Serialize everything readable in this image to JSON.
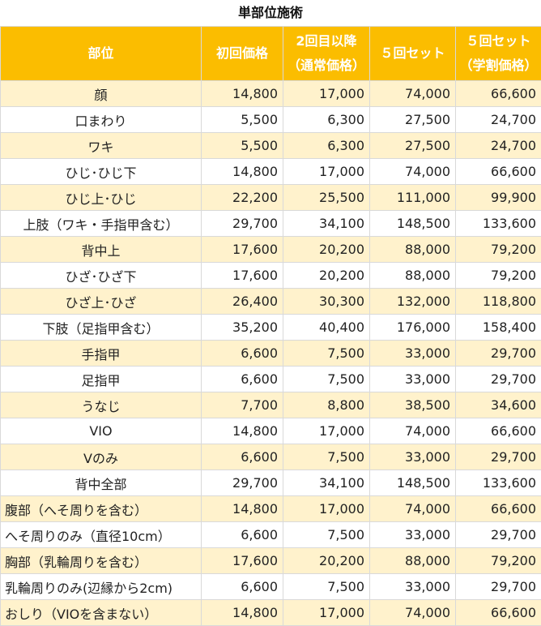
{
  "title": "単部位施術",
  "headers": {
    "part": "部位",
    "first": "初回価格",
    "second_line1": "2回目以降",
    "second_line2": "（通常価格）",
    "set5": "５回セット",
    "set5_student_line1": "５回セット",
    "set5_student_line2": "（学割価格）"
  },
  "colors": {
    "header_bg": "#fbbd00",
    "header_text": "#ffffff",
    "stripe_bg": "#fff2cc",
    "plain_bg": "#ffffff"
  },
  "rows": [
    {
      "part": "顔",
      "first": "14,800",
      "second": "17,000",
      "set5": "74,000",
      "student": "66,600",
      "align": "center"
    },
    {
      "part": "口まわり",
      "first": "5,500",
      "second": "6,300",
      "set5": "27,500",
      "student": "24,700",
      "align": "center"
    },
    {
      "part": "ワキ",
      "first": "5,500",
      "second": "6,300",
      "set5": "27,500",
      "student": "24,700",
      "align": "center"
    },
    {
      "part": "ひじ･ひじ下",
      "first": "14,800",
      "second": "17,000",
      "set5": "74,000",
      "student": "66,600",
      "align": "center"
    },
    {
      "part": "ひじ上･ひじ",
      "first": "22,200",
      "second": "25,500",
      "set5": "111,000",
      "student": "99,900",
      "align": "center"
    },
    {
      "part": "上肢（ワキ・手指甲含む）",
      "first": "29,700",
      "second": "34,100",
      "set5": "148,500",
      "student": "133,600",
      "align": "center"
    },
    {
      "part": "背中上",
      "first": "17,600",
      "second": "20,200",
      "set5": "88,000",
      "student": "79,200",
      "align": "center"
    },
    {
      "part": "ひざ･ひざ下",
      "first": "17,600",
      "second": "20,200",
      "set5": "88,000",
      "student": "79,200",
      "align": "center"
    },
    {
      "part": "ひざ上･ひざ",
      "first": "26,400",
      "second": "30,300",
      "set5": "132,000",
      "student": "118,800",
      "align": "center"
    },
    {
      "part": "下肢（足指甲含む）",
      "first": "35,200",
      "second": "40,400",
      "set5": "176,000",
      "student": "158,400",
      "align": "center"
    },
    {
      "part": "手指甲",
      "first": "6,600",
      "second": "7,500",
      "set5": "33,000",
      "student": "29,700",
      "align": "center"
    },
    {
      "part": "足指甲",
      "first": "6,600",
      "second": "7,500",
      "set5": "33,000",
      "student": "29,700",
      "align": "center"
    },
    {
      "part": "うなじ",
      "first": "7,700",
      "second": "8,800",
      "set5": "38,500",
      "student": "34,600",
      "align": "center"
    },
    {
      "part": "VIO",
      "first": "14,800",
      "second": "17,000",
      "set5": "74,000",
      "student": "66,600",
      "align": "center"
    },
    {
      "part": "Vのみ",
      "first": "6,600",
      "second": "7,500",
      "set5": "33,000",
      "student": "29,700",
      "align": "center"
    },
    {
      "part": "背中全部",
      "first": "29,700",
      "second": "34,100",
      "set5": "148,500",
      "student": "133,600",
      "align": "center"
    },
    {
      "part": "腹部（へそ周りを含む）",
      "first": "14,800",
      "second": "17,000",
      "set5": "74,000",
      "student": "66,600",
      "align": "left"
    },
    {
      "part": "へそ周りのみ（直径10cm）",
      "first": "6,600",
      "second": "7,500",
      "set5": "33,000",
      "student": "29,700",
      "align": "left"
    },
    {
      "part": "胸部（乳輪周りを含む）",
      "first": "17,600",
      "second": "20,200",
      "set5": "88,000",
      "student": "79,200",
      "align": "left"
    },
    {
      "part": "乳輪周りのみ(辺縁から2cm)",
      "first": "6,600",
      "second": "7,500",
      "set5": "33,000",
      "student": "29,700",
      "align": "left"
    },
    {
      "part": "おしり（VIOを含まない）",
      "first": "14,800",
      "second": "17,000",
      "set5": "74,000",
      "student": "66,600",
      "align": "left"
    }
  ]
}
